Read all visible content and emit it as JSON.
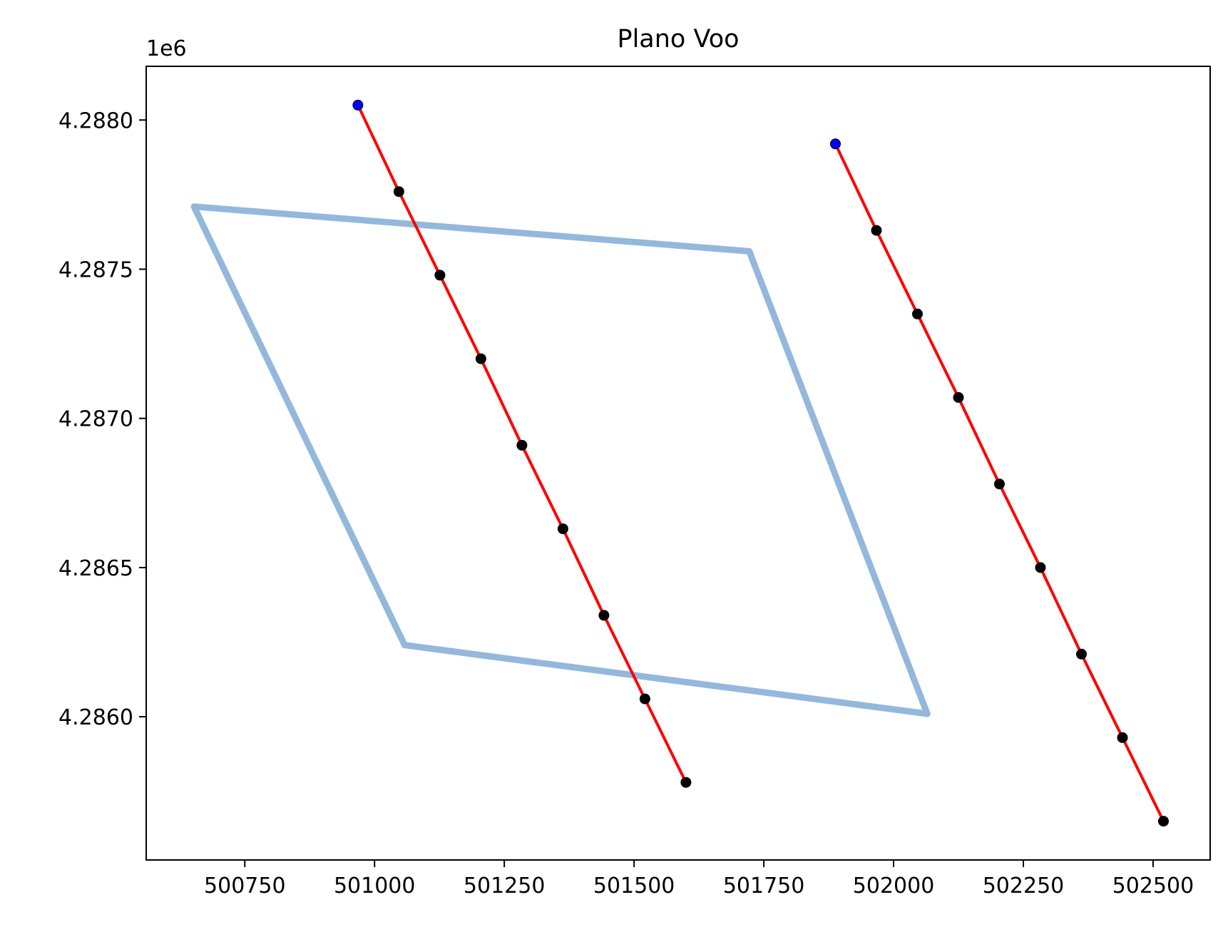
{
  "chart_data": {
    "type": "line",
    "title": "Plano Voo",
    "xlabel": "",
    "ylabel": "",
    "y_offset_label": "1e6",
    "xlim": [
      500560,
      502610
    ],
    "ylim": [
      4.28552,
      4.28818
    ],
    "xticks": [
      500750,
      501000,
      501250,
      501500,
      501750,
      502000,
      502250,
      502500
    ],
    "xtick_labels": [
      "500750",
      "501000",
      "501250",
      "501500",
      "501750",
      "502000",
      "502250",
      "502500"
    ],
    "yticks": [
      4.286,
      4.2865,
      4.287,
      4.2875,
      4.288
    ],
    "ytick_labels": [
      "4.2860",
      "4.2865",
      "4.2870",
      "4.2875",
      "4.2880"
    ],
    "grid": false,
    "colors": {
      "polygon": "#94b8dc",
      "flight_line": "#ff0000",
      "waypoint": "#000000",
      "start_point": "#0000ff"
    },
    "polygon": {
      "x": [
        500652,
        501722,
        502065,
        501058,
        500652
      ],
      "y": [
        4.28771,
        4.28756,
        4.28601,
        4.28624,
        4.28771
      ]
    },
    "series": [
      {
        "x": [
          500968,
          501047,
          501126,
          501205,
          501284,
          501363,
          501442,
          501521,
          501600
        ],
        "y": [
          4.28805,
          4.28776,
          4.28748,
          4.2872,
          4.28691,
          4.28663,
          4.28634,
          4.28606,
          4.28578
        ]
      },
      {
        "x": [
          501888,
          501967,
          502046,
          502125,
          502204,
          502283,
          502362,
          502441,
          502520
        ],
        "y": [
          4.28792,
          4.28763,
          4.28735,
          4.28707,
          4.28678,
          4.2865,
          4.28621,
          4.28593,
          4.28565
        ]
      }
    ]
  }
}
